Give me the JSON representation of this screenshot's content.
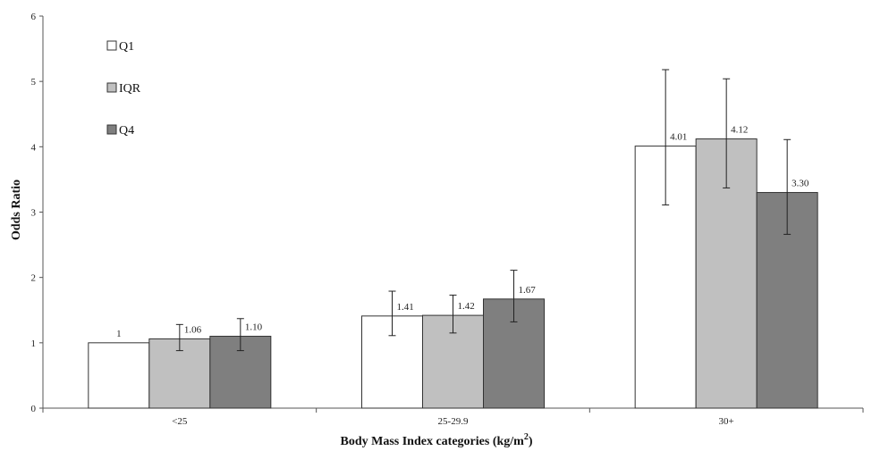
{
  "chart_data": {
    "type": "bar",
    "categories": [
      "<25",
      "25-29.9",
      "30+"
    ],
    "series": [
      {
        "name": "Q1",
        "color": "#ffffff",
        "values": [
          1,
          1.41,
          4.01
        ],
        "labels": [
          "1",
          "1.41",
          "4.01"
        ],
        "err_low": [
          null,
          1.11,
          3.11
        ],
        "err_high": [
          null,
          1.79,
          5.18
        ]
      },
      {
        "name": "IQR",
        "color": "#c0c0c0",
        "values": [
          1.06,
          1.42,
          4.12
        ],
        "labels": [
          "1.06",
          "1.42",
          "4.12"
        ],
        "err_low": [
          0.88,
          1.15,
          3.37
        ],
        "err_high": [
          1.28,
          1.73,
          5.04
        ]
      },
      {
        "name": "Q4",
        "color": "#7f7f7f",
        "values": [
          1.1,
          1.67,
          3.3
        ],
        "labels": [
          "1.10",
          "1.67",
          "3.30"
        ],
        "err_low": [
          0.88,
          1.32,
          2.66
        ],
        "err_high": [
          1.37,
          2.11,
          4.11
        ]
      }
    ],
    "ylim": [
      0,
      6
    ],
    "yticks": [
      "0",
      "1",
      "2",
      "3",
      "4",
      "5",
      "6"
    ],
    "ylabel": "Odds Ratio",
    "xlabel_main": "Body Mass Index categories (kg/m",
    "xlabel_sup": "2",
    "xlabel_end": ")",
    "grid": false,
    "legend_position": "top-left"
  }
}
